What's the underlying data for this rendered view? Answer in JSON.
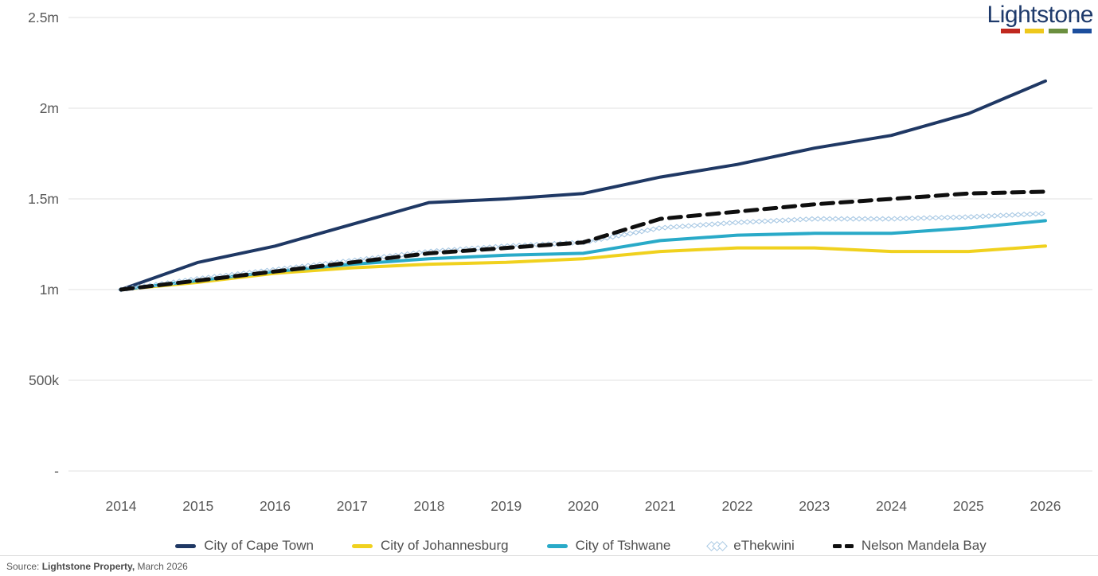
{
  "logo": {
    "text": "Lightstone",
    "bar_colors": [
      "#c0281f",
      "#eec81c",
      "#6b8f3f",
      "#1c4e9d"
    ]
  },
  "source": {
    "prefix": "Source: ",
    "bold": "Lightstone Property,",
    "suffix": " March 2026"
  },
  "chart_data": {
    "type": "line",
    "x": [
      2014,
      2015,
      2016,
      2017,
      2018,
      2019,
      2020,
      2021,
      2022,
      2023,
      2024,
      2025,
      2026
    ],
    "series": [
      {
        "name": "City of Cape Town",
        "color": "#1f3864",
        "style": "solid",
        "values": [
          1000000,
          1150000,
          1240000,
          1360000,
          1480000,
          1500000,
          1530000,
          1620000,
          1690000,
          1780000,
          1850000,
          1970000,
          2150000
        ]
      },
      {
        "name": "City of Johannesburg",
        "color": "#f0d11e",
        "style": "solid",
        "values": [
          1000000,
          1040000,
          1090000,
          1120000,
          1140000,
          1150000,
          1170000,
          1210000,
          1230000,
          1230000,
          1210000,
          1210000,
          1240000
        ]
      },
      {
        "name": "City of Tshwane",
        "color": "#29aac8",
        "style": "solid",
        "values": [
          1000000,
          1050000,
          1100000,
          1140000,
          1170000,
          1190000,
          1200000,
          1270000,
          1300000,
          1310000,
          1310000,
          1340000,
          1380000
        ]
      },
      {
        "name": "eThekwini",
        "color": "#a9c9e4",
        "style": "diamonds",
        "values": [
          1000000,
          1060000,
          1110000,
          1160000,
          1210000,
          1240000,
          1260000,
          1340000,
          1370000,
          1390000,
          1390000,
          1400000,
          1420000
        ]
      },
      {
        "name": "Nelson Mandela Bay",
        "color": "#0f0f0f",
        "style": "dashed",
        "values": [
          1000000,
          1050000,
          1100000,
          1150000,
          1200000,
          1230000,
          1260000,
          1390000,
          1430000,
          1470000,
          1500000,
          1530000,
          1540000
        ]
      }
    ],
    "yticks": [
      {
        "label": "2.5m",
        "value": 2500000
      },
      {
        "label": "2m",
        "value": 2000000
      },
      {
        "label": "1.5m",
        "value": 1500000
      },
      {
        "label": "1m",
        "value": 1000000
      },
      {
        "label": "500k",
        "value": 500000
      },
      {
        "label": "-",
        "value": 0
      }
    ],
    "ylim": [
      0,
      2500000
    ],
    "grid": "horizontal",
    "legend_position": "bottom",
    "axis_text_color": "#595959",
    "grid_color": "#e1e1e1"
  }
}
